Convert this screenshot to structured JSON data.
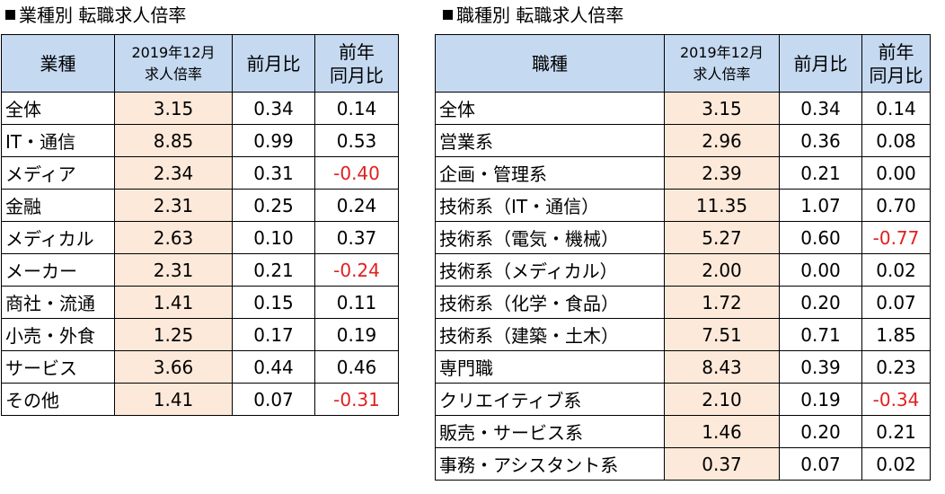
{
  "industry": {
    "title": "業種別 転職求人倍率",
    "header": {
      "category": "業種",
      "rate_line1": "2019年12月",
      "rate_line2": "求人倍率",
      "mom": "前月比",
      "yoy_line1": "前年",
      "yoy_line2": "同月比"
    },
    "rows": [
      {
        "name": "全体",
        "rate": "3.15",
        "mom": "0.34",
        "yoy": "0.14",
        "neg": false
      },
      {
        "name": "IT・通信",
        "rate": "8.85",
        "mom": "0.99",
        "yoy": "0.53",
        "neg": false
      },
      {
        "name": "メディア",
        "rate": "2.34",
        "mom": "0.31",
        "yoy": "-0.40",
        "neg": true
      },
      {
        "name": "金融",
        "rate": "2.31",
        "mom": "0.25",
        "yoy": "0.24",
        "neg": false
      },
      {
        "name": "メディカル",
        "rate": "2.63",
        "mom": "0.10",
        "yoy": "0.37",
        "neg": false
      },
      {
        "name": "メーカー",
        "rate": "2.31",
        "mom": "0.21",
        "yoy": "-0.24",
        "neg": true
      },
      {
        "name": "商社・流通",
        "rate": "1.41",
        "mom": "0.15",
        "yoy": "0.11",
        "neg": false
      },
      {
        "name": "小売・外食",
        "rate": "1.25",
        "mom": "0.17",
        "yoy": "0.19",
        "neg": false
      },
      {
        "name": "サービス",
        "rate": "3.66",
        "mom": "0.44",
        "yoy": "0.46",
        "neg": false
      },
      {
        "name": "その他",
        "rate": "1.41",
        "mom": "0.07",
        "yoy": "-0.31",
        "neg": true
      }
    ]
  },
  "occupation": {
    "title": "職種別 転職求人倍率",
    "header": {
      "category": "職種",
      "rate_line1": "2019年12月",
      "rate_line2": "求人倍率",
      "mom": "前月比",
      "yoy_line1": "前年",
      "yoy_line2": "同月比"
    },
    "rows": [
      {
        "name": "全体",
        "rate": "3.15",
        "mom": "0.34",
        "yoy": "0.14",
        "neg": false
      },
      {
        "name": "営業系",
        "rate": "2.96",
        "mom": "0.36",
        "yoy": "0.08",
        "neg": false
      },
      {
        "name": "企画・管理系",
        "rate": "2.39",
        "mom": "0.21",
        "yoy": "0.00",
        "neg": false
      },
      {
        "name": "技術系（IT・通信）",
        "rate": "11.35",
        "mom": "1.07",
        "yoy": "0.70",
        "neg": false
      },
      {
        "name": "技術系（電気・機械）",
        "rate": "5.27",
        "mom": "0.60",
        "yoy": "-0.77",
        "neg": true
      },
      {
        "name": "技術系（メディカル）",
        "rate": "2.00",
        "mom": "0.00",
        "yoy": "0.02",
        "neg": false
      },
      {
        "name": "技術系（化学・食品）",
        "rate": "1.72",
        "mom": "0.20",
        "yoy": "0.07",
        "neg": false
      },
      {
        "name": "技術系（建築・土木）",
        "rate": "7.51",
        "mom": "0.71",
        "yoy": "1.85",
        "neg": false
      },
      {
        "name": "専門職",
        "rate": "8.43",
        "mom": "0.39",
        "yoy": "0.23",
        "neg": false
      },
      {
        "name": "クリエイティブ系",
        "rate": "2.10",
        "mom": "0.19",
        "yoy": "-0.34",
        "neg": true
      },
      {
        "name": "販売・サービス系",
        "rate": "1.46",
        "mom": "0.20",
        "yoy": "0.21",
        "neg": false
      },
      {
        "name": "事務・アシスタント系",
        "rate": "0.37",
        "mom": "0.07",
        "yoy": "0.02",
        "neg": false
      }
    ]
  },
  "colors": {
    "header_bg": "#c5d9f1",
    "rate_bg": "#fde9d9",
    "negative": "#e02020",
    "border": "#000000"
  }
}
